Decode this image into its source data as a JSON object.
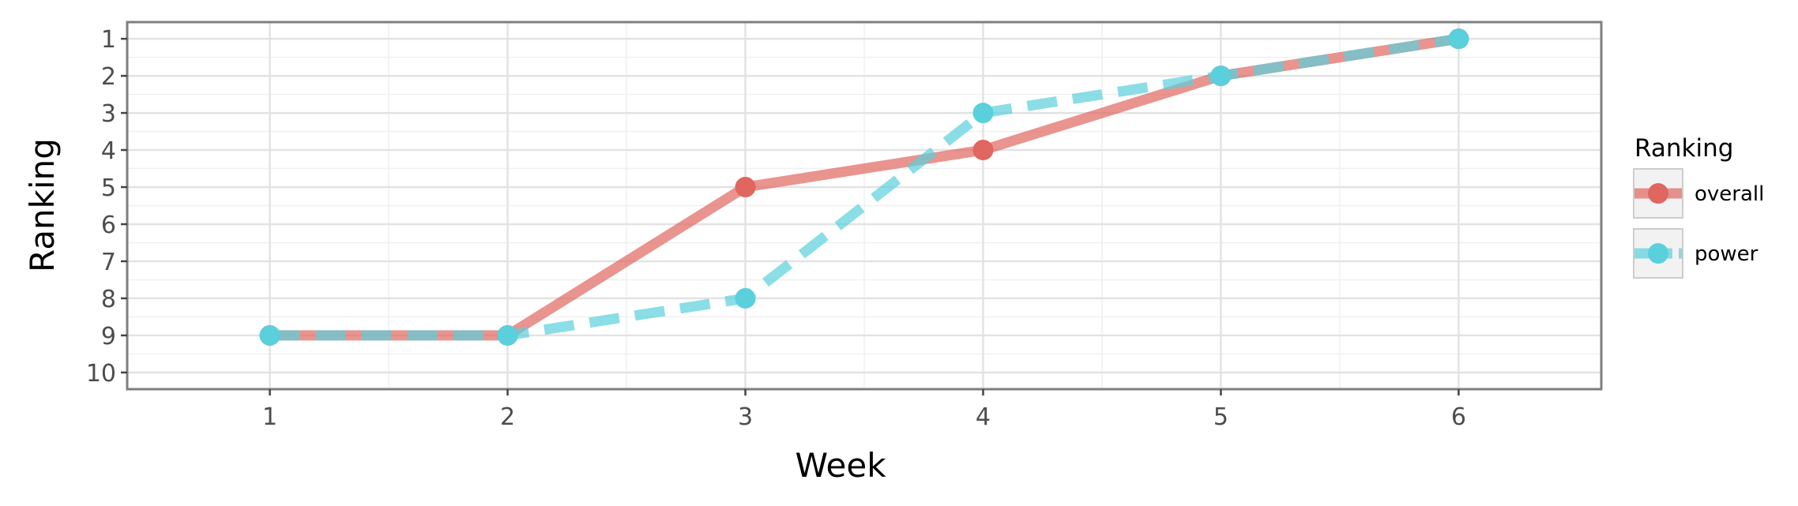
{
  "chart_data": {
    "type": "line",
    "title": "",
    "xlabel": "Week",
    "ylabel": "Ranking",
    "x": [
      1,
      2,
      3,
      4,
      5,
      6
    ],
    "xlim": [
      0.4,
      6.6
    ],
    "ylim": [
      10.45,
      0.55
    ],
    "y_reversed": true,
    "x_ticks": [
      "1",
      "2",
      "3",
      "4",
      "5",
      "6"
    ],
    "y_ticks": [
      "1",
      "2",
      "3",
      "4",
      "5",
      "6",
      "7",
      "8",
      "9",
      "10"
    ],
    "grid": true,
    "legend": {
      "title": "Ranking",
      "position": "right",
      "entries": [
        "overall",
        "power"
      ]
    },
    "series": [
      {
        "name": "overall",
        "values": [
          9,
          9,
          5,
          4,
          2,
          1
        ],
        "color": "#e06660",
        "line_style": "solid"
      },
      {
        "name": "power",
        "values": [
          9,
          9,
          8,
          3,
          2,
          1
        ],
        "color": "#5ad0dc",
        "line_style": "dashed"
      }
    ]
  }
}
